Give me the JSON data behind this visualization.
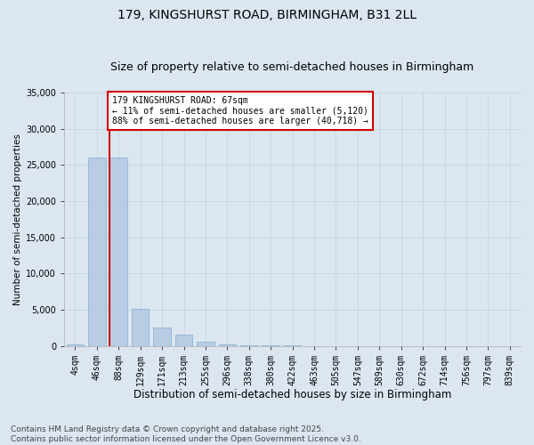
{
  "title1": "179, KINGSHURST ROAD, BIRMINGHAM, B31 2LL",
  "title2": "Size of property relative to semi-detached houses in Birmingham",
  "xlabel": "Distribution of semi-detached houses by size in Birmingham",
  "ylabel": "Number of semi-detached properties",
  "footer": "Contains HM Land Registry data © Crown copyright and database right 2025.\nContains public sector information licensed under the Open Government Licence v3.0.",
  "bar_categories": [
    "4sqm",
    "46sqm",
    "88sqm",
    "129sqm",
    "171sqm",
    "213sqm",
    "255sqm",
    "296sqm",
    "338sqm",
    "380sqm",
    "422sqm",
    "463sqm",
    "505sqm",
    "547sqm",
    "589sqm",
    "630sqm",
    "672sqm",
    "714sqm",
    "756sqm",
    "797sqm",
    "839sqm"
  ],
  "bar_values": [
    200,
    26000,
    26000,
    5100,
    2500,
    1500,
    500,
    150,
    60,
    20,
    8,
    4,
    2,
    1,
    1,
    0,
    0,
    0,
    0,
    0,
    0
  ],
  "bar_color": "#b8cce4",
  "bar_edge_color": "#7fafd4",
  "grid_color": "#c8d4e4",
  "background_color": "#dce6f1",
  "vline_color": "#cc0000",
  "vline_x_index": 1.5,
  "annotation_text": "179 KINGSHURST ROAD: 67sqm\n← 11% of semi-detached houses are smaller (5,120)\n88% of semi-detached houses are larger (40,718) →",
  "annotation_box_color": "#ffffff",
  "annotation_box_edge": "#cc0000",
  "ylim": [
    0,
    35000
  ],
  "yticks": [
    0,
    5000,
    10000,
    15000,
    20000,
    25000,
    30000,
    35000
  ],
  "title1_fontsize": 10,
  "title2_fontsize": 9,
  "xlabel_fontsize": 8.5,
  "ylabel_fontsize": 7.5,
  "tick_fontsize": 7,
  "footer_fontsize": 6.5,
  "ann_fontsize": 7
}
